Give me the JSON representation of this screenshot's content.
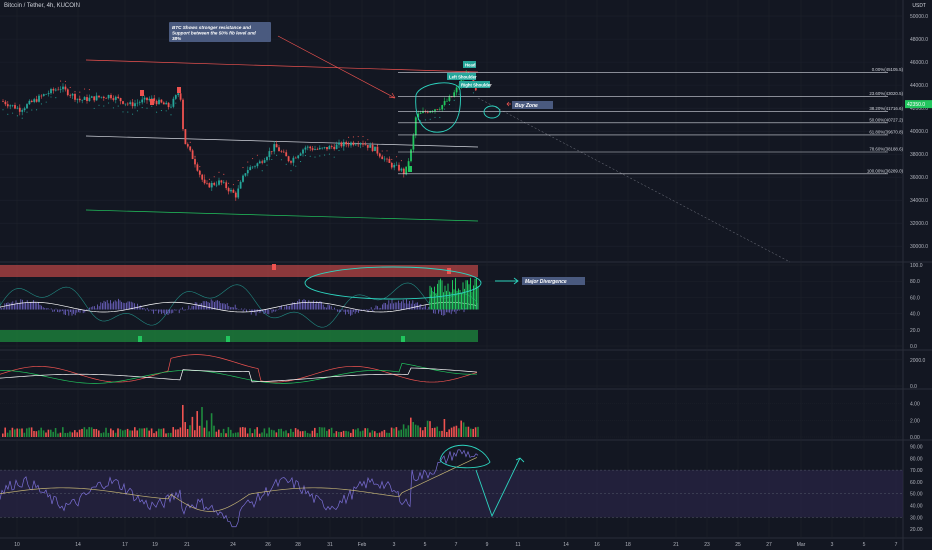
{
  "header": {
    "title": "Bitcoin / Tether, 4h, KUCOIN",
    "currency": "USDT"
  },
  "annotations": {
    "btc_note": "BTC Shows stronger resistance and Support between the 50% fib level and 38%",
    "head": "Head",
    "left_shoulder": "Left Shoulder",
    "right_shoulder": "Right Shoulder",
    "buy_zone": "Buy Zone",
    "major_divergence": "Major Divergence"
  },
  "chart_data": [
    {
      "type": "candlestick",
      "name": "price",
      "yaxis_ticks": [
        30000,
        32000,
        34000,
        36000,
        38000,
        40000,
        42000,
        44000,
        46000,
        48000,
        50000
      ],
      "ylim": [
        29000,
        50000
      ],
      "last_price_tag": "42350.0",
      "x_tick_labels": [
        "10",
        "14",
        "17",
        "19",
        "21",
        "24",
        "26",
        "28",
        "31",
        "Feb",
        "3",
        "5",
        "7",
        "9",
        "11",
        "14",
        "16",
        "18",
        "21",
        "23",
        "25",
        "27",
        "Mar",
        "3",
        "5",
        "7"
      ],
      "fib_levels": [
        {
          "label": "0.00%(45105.5)",
          "ratio": 0.0,
          "price": 45105.5
        },
        {
          "label": "23.60%(43020.5)",
          "ratio": 0.236,
          "price": 43020.5
        },
        {
          "label": "38.20%(41716.6)",
          "ratio": 0.382,
          "price": 41716.6
        },
        {
          "label": "50.00%(40727.2)",
          "ratio": 0.5,
          "price": 40727.2
        },
        {
          "label": "61.80%(39670.8)",
          "ratio": 0.618,
          "price": 39670.8
        },
        {
          "label": "78.60%(38188.6)",
          "ratio": 0.786,
          "price": 38188.6
        },
        {
          "label": "100.00%(36289.0)",
          "ratio": 1.0,
          "price": 36289.0
        }
      ]
    },
    {
      "type": "oscillator",
      "name": "momentum-panel",
      "yaxis_ticks": [
        0.0,
        20.0,
        40.0,
        60.0,
        80.0,
        100.0
      ]
    },
    {
      "type": "line",
      "name": "dmi-panel",
      "yaxis_ticks": [
        0.0,
        2000.0
      ]
    },
    {
      "type": "bar",
      "name": "volume-panel",
      "yaxis_ticks": [
        0.0,
        2.0,
        4.0
      ]
    },
    {
      "type": "line",
      "name": "rsi-panel",
      "yaxis_ticks": [
        20.0,
        30.0,
        40.0,
        50.0,
        60.0,
        70.0,
        80.0,
        90.0
      ]
    }
  ],
  "colors": {
    "background": "#131722",
    "up": "#26a69a",
    "up_bright": "#22c55e",
    "down": "#ef5350",
    "grid": "#1e222d",
    "axis_text": "#b2b5be",
    "fib_line": "#d1d4dc",
    "label_box": "#4a5a7f",
    "teal_drawing": "#2dd4bf",
    "rsi_band": "#2a2546",
    "rsi_line": "#7b6fd6"
  }
}
